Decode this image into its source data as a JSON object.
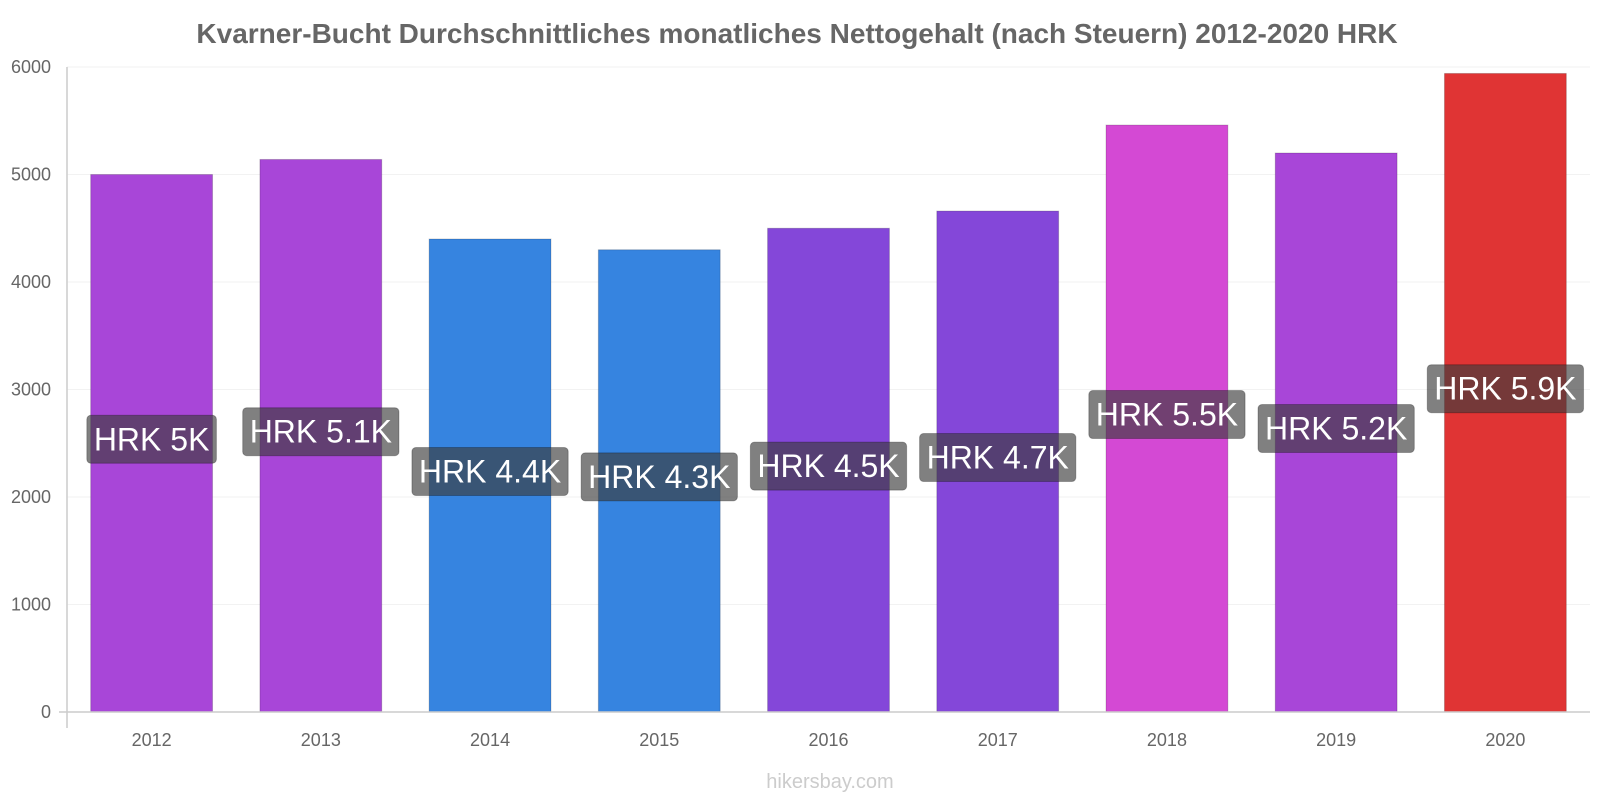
{
  "chart_data": {
    "type": "bar",
    "title": "Kvarner-Bucht Durchschnittliches monatliches Nettogehalt (nach Steuern) 2012-2020 HRK",
    "categories": [
      "2012",
      "2013",
      "2014",
      "2015",
      "2016",
      "2017",
      "2018",
      "2019",
      "2020"
    ],
    "values": [
      5000,
      5140,
      4400,
      4300,
      4500,
      4660,
      5460,
      5200,
      5940
    ],
    "value_labels": [
      "HRK 5K",
      "HRK 5.1K",
      "HRK 4.4K",
      "HRK 4.3K",
      "HRK 4.5K",
      "HRK 4.7K",
      "HRK 5.5K",
      "HRK 5.2K",
      "HRK 5.9K"
    ],
    "colors": [
      "#a846d8",
      "#a846d8",
      "#3684e0",
      "#3684e0",
      "#8447d9",
      "#8447d9",
      "#d449d4",
      "#a846d8",
      "#e03434"
    ],
    "yticks": [
      0,
      1000,
      2000,
      3000,
      4000,
      5000,
      6000
    ],
    "ylim": [
      0,
      6000
    ],
    "grid": true,
    "legend": "none"
  },
  "watermark": "hikersbay.com"
}
